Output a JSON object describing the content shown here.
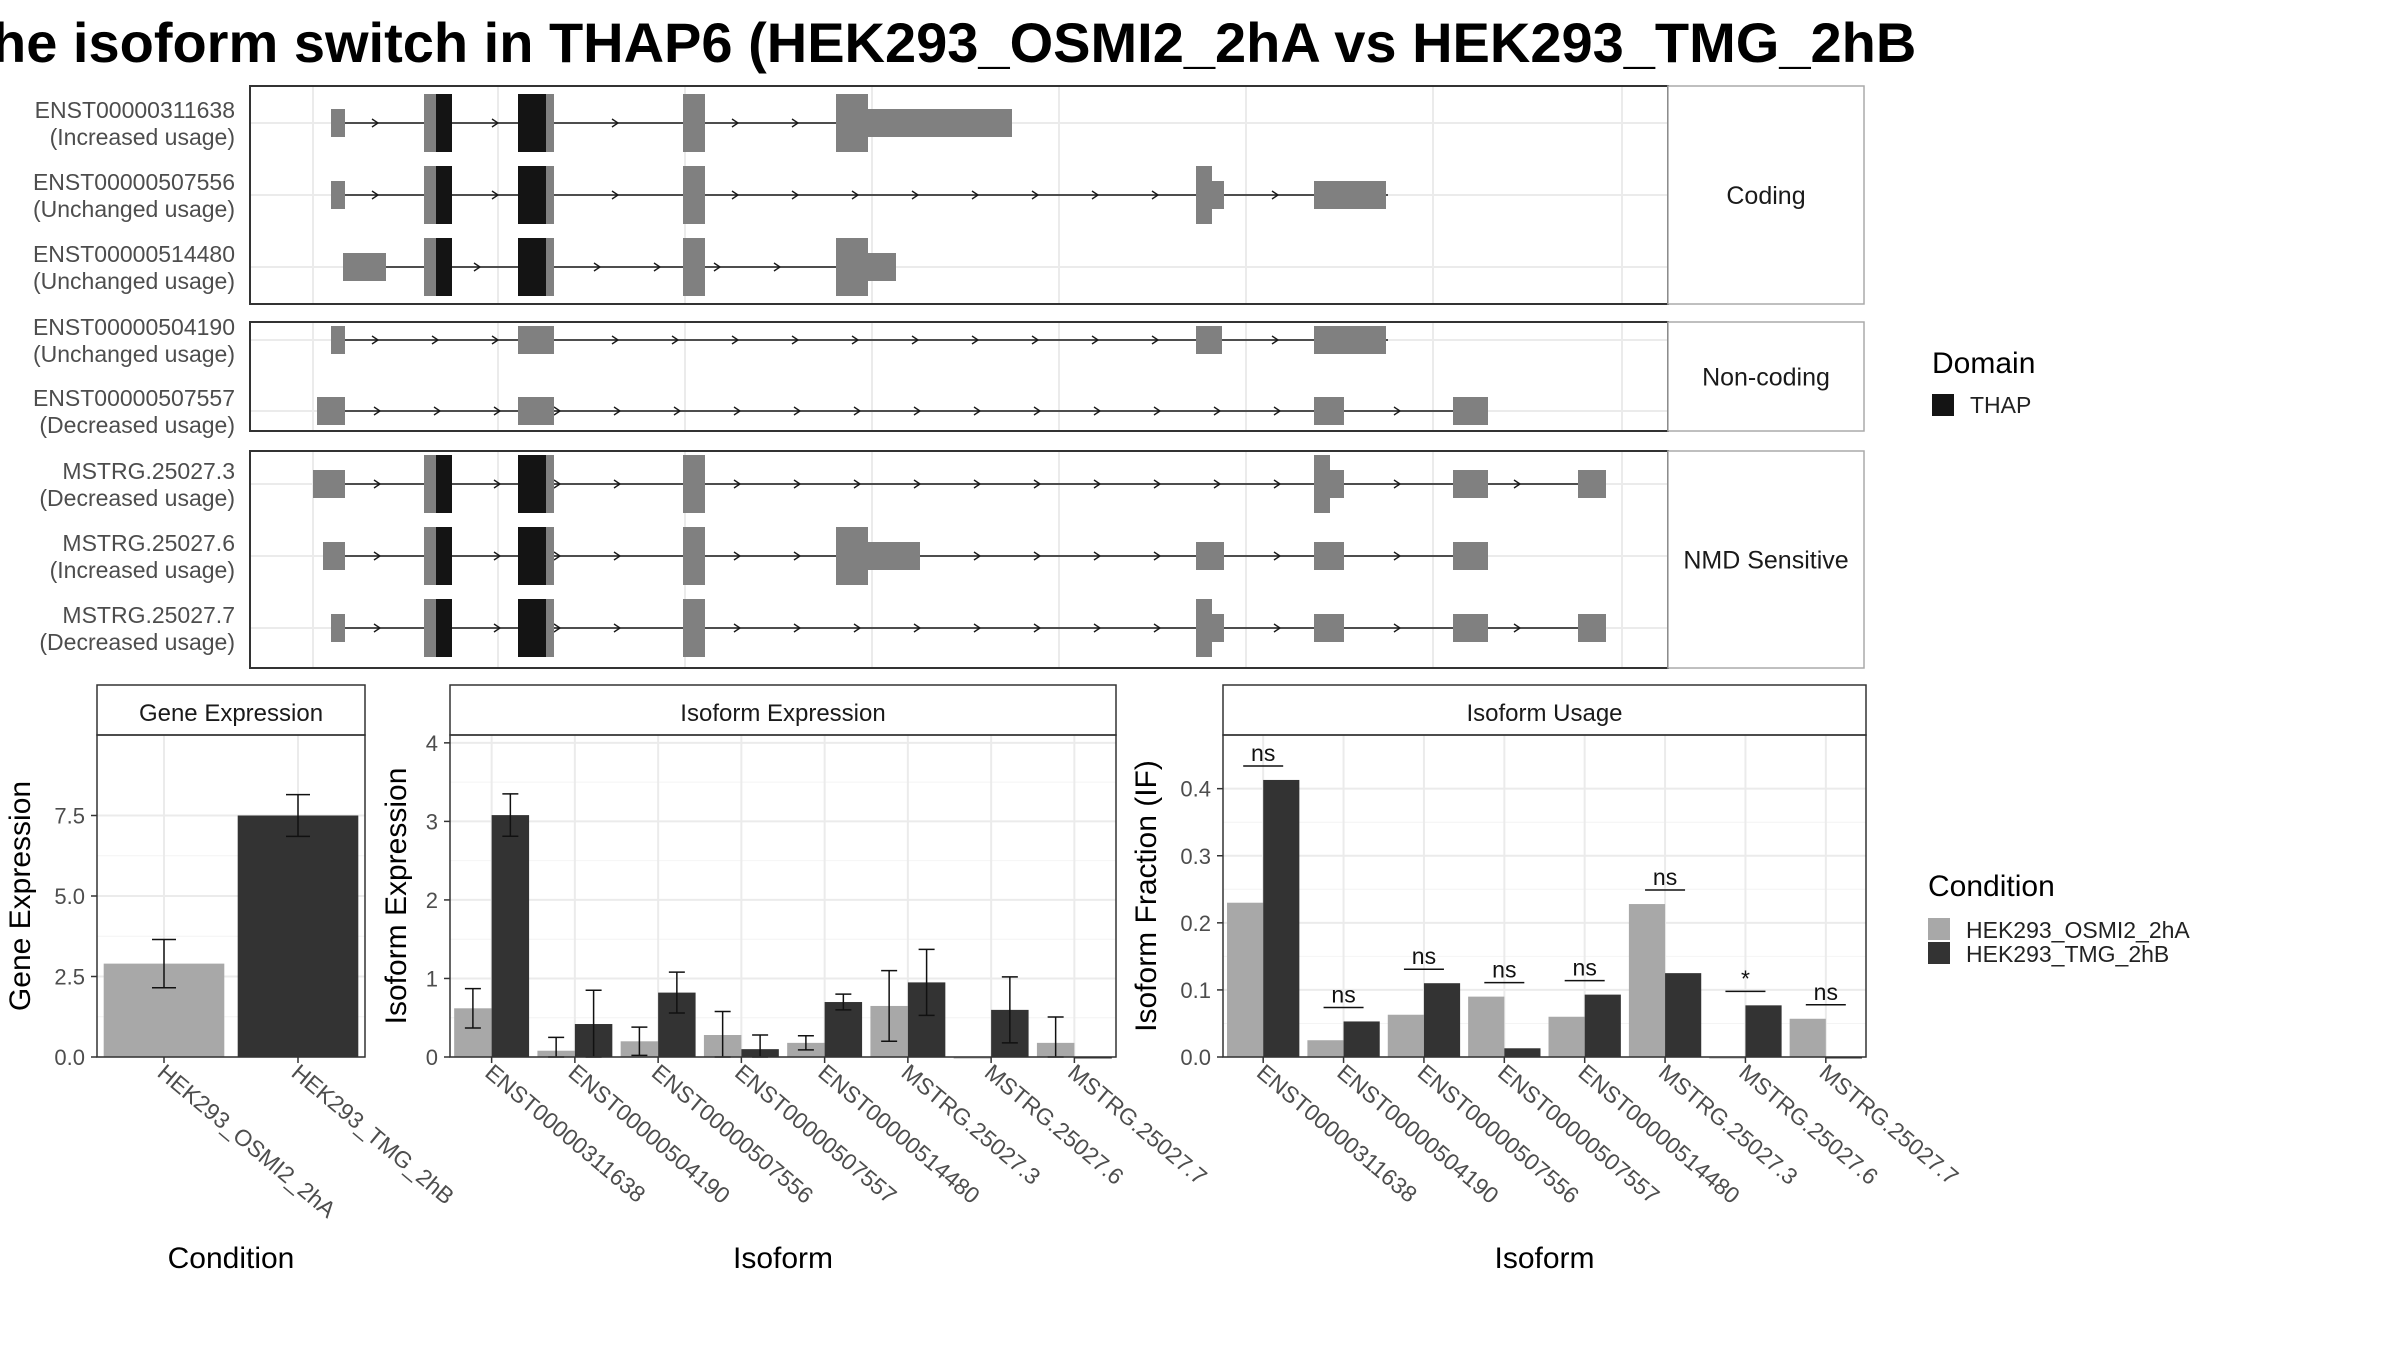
{
  "title": "he isoform switch in THAP6 (HEK293_OSMI2_2hA vs HEK293_TMG_2hB",
  "colors": {
    "exon": "#808080",
    "domain": "#141414",
    "condition_a": "#a8a8a8",
    "condition_b": "#333333",
    "grid": "#ebebeb",
    "strip": "#f2f2f2"
  },
  "transcript_panel": {
    "groups": [
      {
        "label": "Coding",
        "transcripts": [
          {
            "id": "ENST00000311638",
            "usage": "(Increased usage)"
          },
          {
            "id": "ENST00000507556",
            "usage": "(Unchanged usage)"
          },
          {
            "id": "ENST00000514480",
            "usage": "(Unchanged usage)"
          }
        ]
      },
      {
        "label": "Non-coding",
        "transcripts": [
          {
            "id": "ENST00000504190",
            "usage": "(Unchanged usage)"
          },
          {
            "id": "ENST00000507557",
            "usage": "(Decreased usage)"
          }
        ]
      },
      {
        "label": "NMD Sensitive",
        "transcripts": [
          {
            "id": "MSTRG.25027.3",
            "usage": "(Decreased usage)"
          },
          {
            "id": "MSTRG.25027.6",
            "usage": "(Increased usage)"
          },
          {
            "id": "MSTRG.25027.7",
            "usage": "(Decreased usage)"
          }
        ]
      }
    ]
  },
  "legends": {
    "domain": {
      "title": "Domain",
      "items": [
        "THAP"
      ]
    },
    "condition": {
      "title": "Condition",
      "items": [
        "HEK293_OSMI2_2hA",
        "HEK293_TMG_2hB"
      ]
    }
  },
  "chart_data": [
    {
      "type": "bar",
      "title": "Gene Expression",
      "xlabel": "Condition",
      "ylabel": "Gene Expression",
      "categories": [
        "HEK293_OSMI2_2hA",
        "HEK293_TMG_2hB"
      ],
      "values": [
        2.9,
        7.5
      ],
      "errors": [
        0.75,
        0.65
      ],
      "ylim": [
        0,
        10
      ],
      "yticks": [
        "0.0",
        "2.5",
        "5.0",
        "7.5"
      ]
    },
    {
      "type": "bar",
      "title": "Isoform Expression",
      "xlabel": "Isoform",
      "ylabel": "Isoform Expression",
      "categories": [
        "ENST00000311638",
        "ENST00000504190",
        "ENST00000507556",
        "ENST00000507557",
        "ENST00000514480",
        "MSTRG.25027.3",
        "MSTRG.25027.6",
        "MSTRG.25027.7"
      ],
      "series": [
        {
          "name": "HEK293_OSMI2_2hA",
          "values": [
            0.62,
            0.08,
            0.2,
            0.28,
            0.18,
            0.65,
            0.0,
            0.18
          ],
          "errors": [
            0.25,
            0.17,
            0.18,
            0.3,
            0.09,
            0.45,
            0.0,
            0.33
          ]
        },
        {
          "name": "HEK293_TMG_2hB",
          "values": [
            3.08,
            0.42,
            0.82,
            0.1,
            0.7,
            0.95,
            0.6,
            0.0
          ],
          "errors": [
            0.27,
            0.43,
            0.26,
            0.18,
            0.1,
            0.42,
            0.42,
            0.0
          ]
        }
      ],
      "ylim": [
        0,
        4.1
      ],
      "yticks": [
        "0",
        "1",
        "2",
        "3",
        "4"
      ]
    },
    {
      "type": "bar",
      "title": "Isoform Usage",
      "xlabel": "Isoform",
      "ylabel": "Isoform Fraction (IF)",
      "categories": [
        "ENST00000311638",
        "ENST00000504190",
        "ENST00000507556",
        "ENST00000507557",
        "ENST00000514480",
        "MSTRG.25027.3",
        "MSTRG.25027.6",
        "MSTRG.25027.7"
      ],
      "series": [
        {
          "name": "HEK293_OSMI2_2hA",
          "values": [
            0.23,
            0.025,
            0.063,
            0.09,
            0.06,
            0.228,
            0.0,
            0.057
          ]
        },
        {
          "name": "HEK293_TMG_2hB",
          "values": [
            0.413,
            0.053,
            0.11,
            0.013,
            0.093,
            0.125,
            0.077,
            0.0
          ]
        }
      ],
      "significance": [
        "ns",
        "ns",
        "ns",
        "ns",
        "ns",
        "ns",
        "*",
        "ns"
      ],
      "ylim": [
        0,
        0.48
      ],
      "yticks": [
        "0.0",
        "0.1",
        "0.2",
        "0.3",
        "0.4"
      ]
    }
  ]
}
